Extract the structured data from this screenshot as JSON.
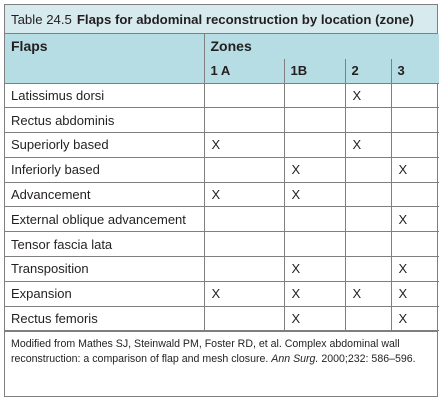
{
  "caption": {
    "number": "Table 24.5",
    "title": "Flaps for abdominal reconstruction by location (zone)"
  },
  "header": {
    "flaps_label": "Flaps",
    "zones_label": "Zones",
    "zones": [
      "1 A",
      "1B",
      "2",
      "3"
    ]
  },
  "rows": [
    {
      "flap": "Latissimus dorsi",
      "marks": [
        "",
        "",
        "X",
        ""
      ]
    },
    {
      "flap": "Rectus abdominis",
      "marks": [
        "",
        "",
        "",
        ""
      ]
    },
    {
      "flap": "Superiorly based",
      "marks": [
        "X",
        "",
        "X",
        ""
      ]
    },
    {
      "flap": "Inferiorly based",
      "marks": [
        "",
        "X",
        "",
        "X"
      ]
    },
    {
      "flap": "Advancement",
      "marks": [
        "X",
        "X",
        "",
        ""
      ]
    },
    {
      "flap": "External oblique advancement",
      "marks": [
        "",
        "",
        "",
        "X"
      ]
    },
    {
      "flap": "Tensor fascia lata",
      "marks": [
        "",
        "",
        "",
        ""
      ]
    },
    {
      "flap": "Transposition",
      "marks": [
        "",
        "X",
        "",
        "X"
      ]
    },
    {
      "flap": "Expansion",
      "marks": [
        "X",
        "X",
        "X",
        "X"
      ]
    },
    {
      "flap": "Rectus femoris",
      "marks": [
        "",
        "X",
        "",
        "X"
      ]
    }
  ],
  "footnote": {
    "text_before": "Modified from Mathes SJ, Steinwald PM, Foster RD, et al. Complex abdominal wall reconstruction: a comparison of flap and mesh closure. ",
    "journal": "Ann Surg.",
    "text_after": " 2000;232: 586–596."
  }
}
